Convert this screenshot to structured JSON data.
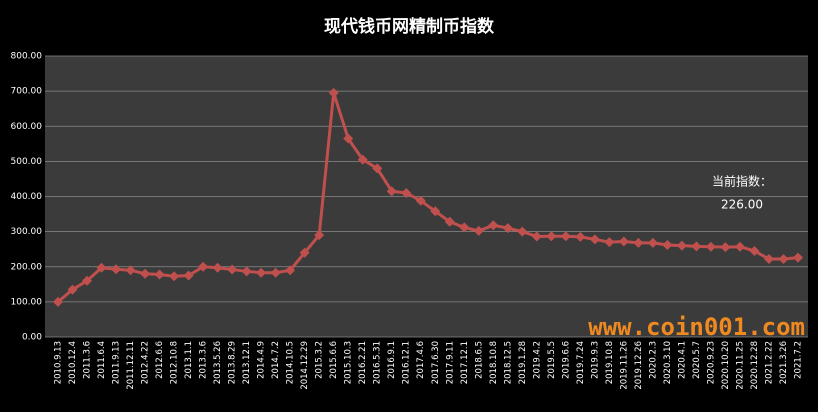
{
  "chart_data": {
    "type": "line",
    "title": "现代钱币网精制币指数",
    "categories": [
      "2010.9.13",
      "2010.12.4",
      "2011.3.6",
      "2011.6.4",
      "2011.9.13",
      "2011.12.11",
      "2012.4.22",
      "2012.6.6",
      "2012.10.8",
      "2013.1.1",
      "2013.3.6",
      "2013.5.26",
      "2013.8.29",
      "2013.12.1",
      "2014.4.9",
      "2014.7.2",
      "2014.10.5",
      "2014.12.29",
      "2015.3.2",
      "2015.6.6",
      "2015.10.3",
      "2016.2.21",
      "2016.5.31",
      "2016.9.1",
      "2016.12.1",
      "2017.4.6",
      "2017.6.30",
      "2017.9.11",
      "2017.12.1",
      "2018.6.5",
      "2018.10.8",
      "2018.12.5",
      "2019.1.28",
      "2019.4.2",
      "2019.5.5",
      "2019.6.6",
      "2019.7.24",
      "2019.9.3",
      "2019.10.8",
      "2019.11.26",
      "2019.12.26",
      "2020.2.3",
      "2020.3.10",
      "2020.4.1",
      "2020.5.7",
      "2020.9.23",
      "2020.10.20",
      "2020.11.25",
      "2020.12.28",
      "2021.2.22",
      "2021.3.26",
      "2021.7.2"
    ],
    "series": [
      {
        "color": "#c0504d",
        "values": [
          100,
          135,
          160,
          197,
          193,
          190,
          180,
          178,
          173,
          175,
          200,
          197,
          192,
          187,
          183,
          183,
          190,
          240,
          290,
          695,
          565,
          505,
          480,
          415,
          410,
          388,
          358,
          328,
          312,
          302,
          318,
          310,
          300,
          286,
          287,
          287,
          285,
          278,
          270,
          272,
          268,
          268,
          262,
          260,
          258,
          257,
          256,
          257,
          245,
          222,
          222,
          226
        ]
      }
    ],
    "ylim": [
      0,
      800
    ],
    "yticks": [
      {
        "value": 0,
        "label": "0.00"
      },
      {
        "value": 100,
        "label": "100.00"
      },
      {
        "value": 200,
        "label": "200.00"
      },
      {
        "value": 300,
        "label": "300.00"
      },
      {
        "value": 400,
        "label": "400.00"
      },
      {
        "value": 500,
        "label": "500.00"
      },
      {
        "value": 600,
        "label": "600.00"
      },
      {
        "value": 700,
        "label": "700.00"
      },
      {
        "value": 800,
        "label": "800.00"
      }
    ],
    "grid": true,
    "annotations": [
      "当前指数：",
      "226.00"
    ],
    "watermark": "www.coin001.com"
  }
}
